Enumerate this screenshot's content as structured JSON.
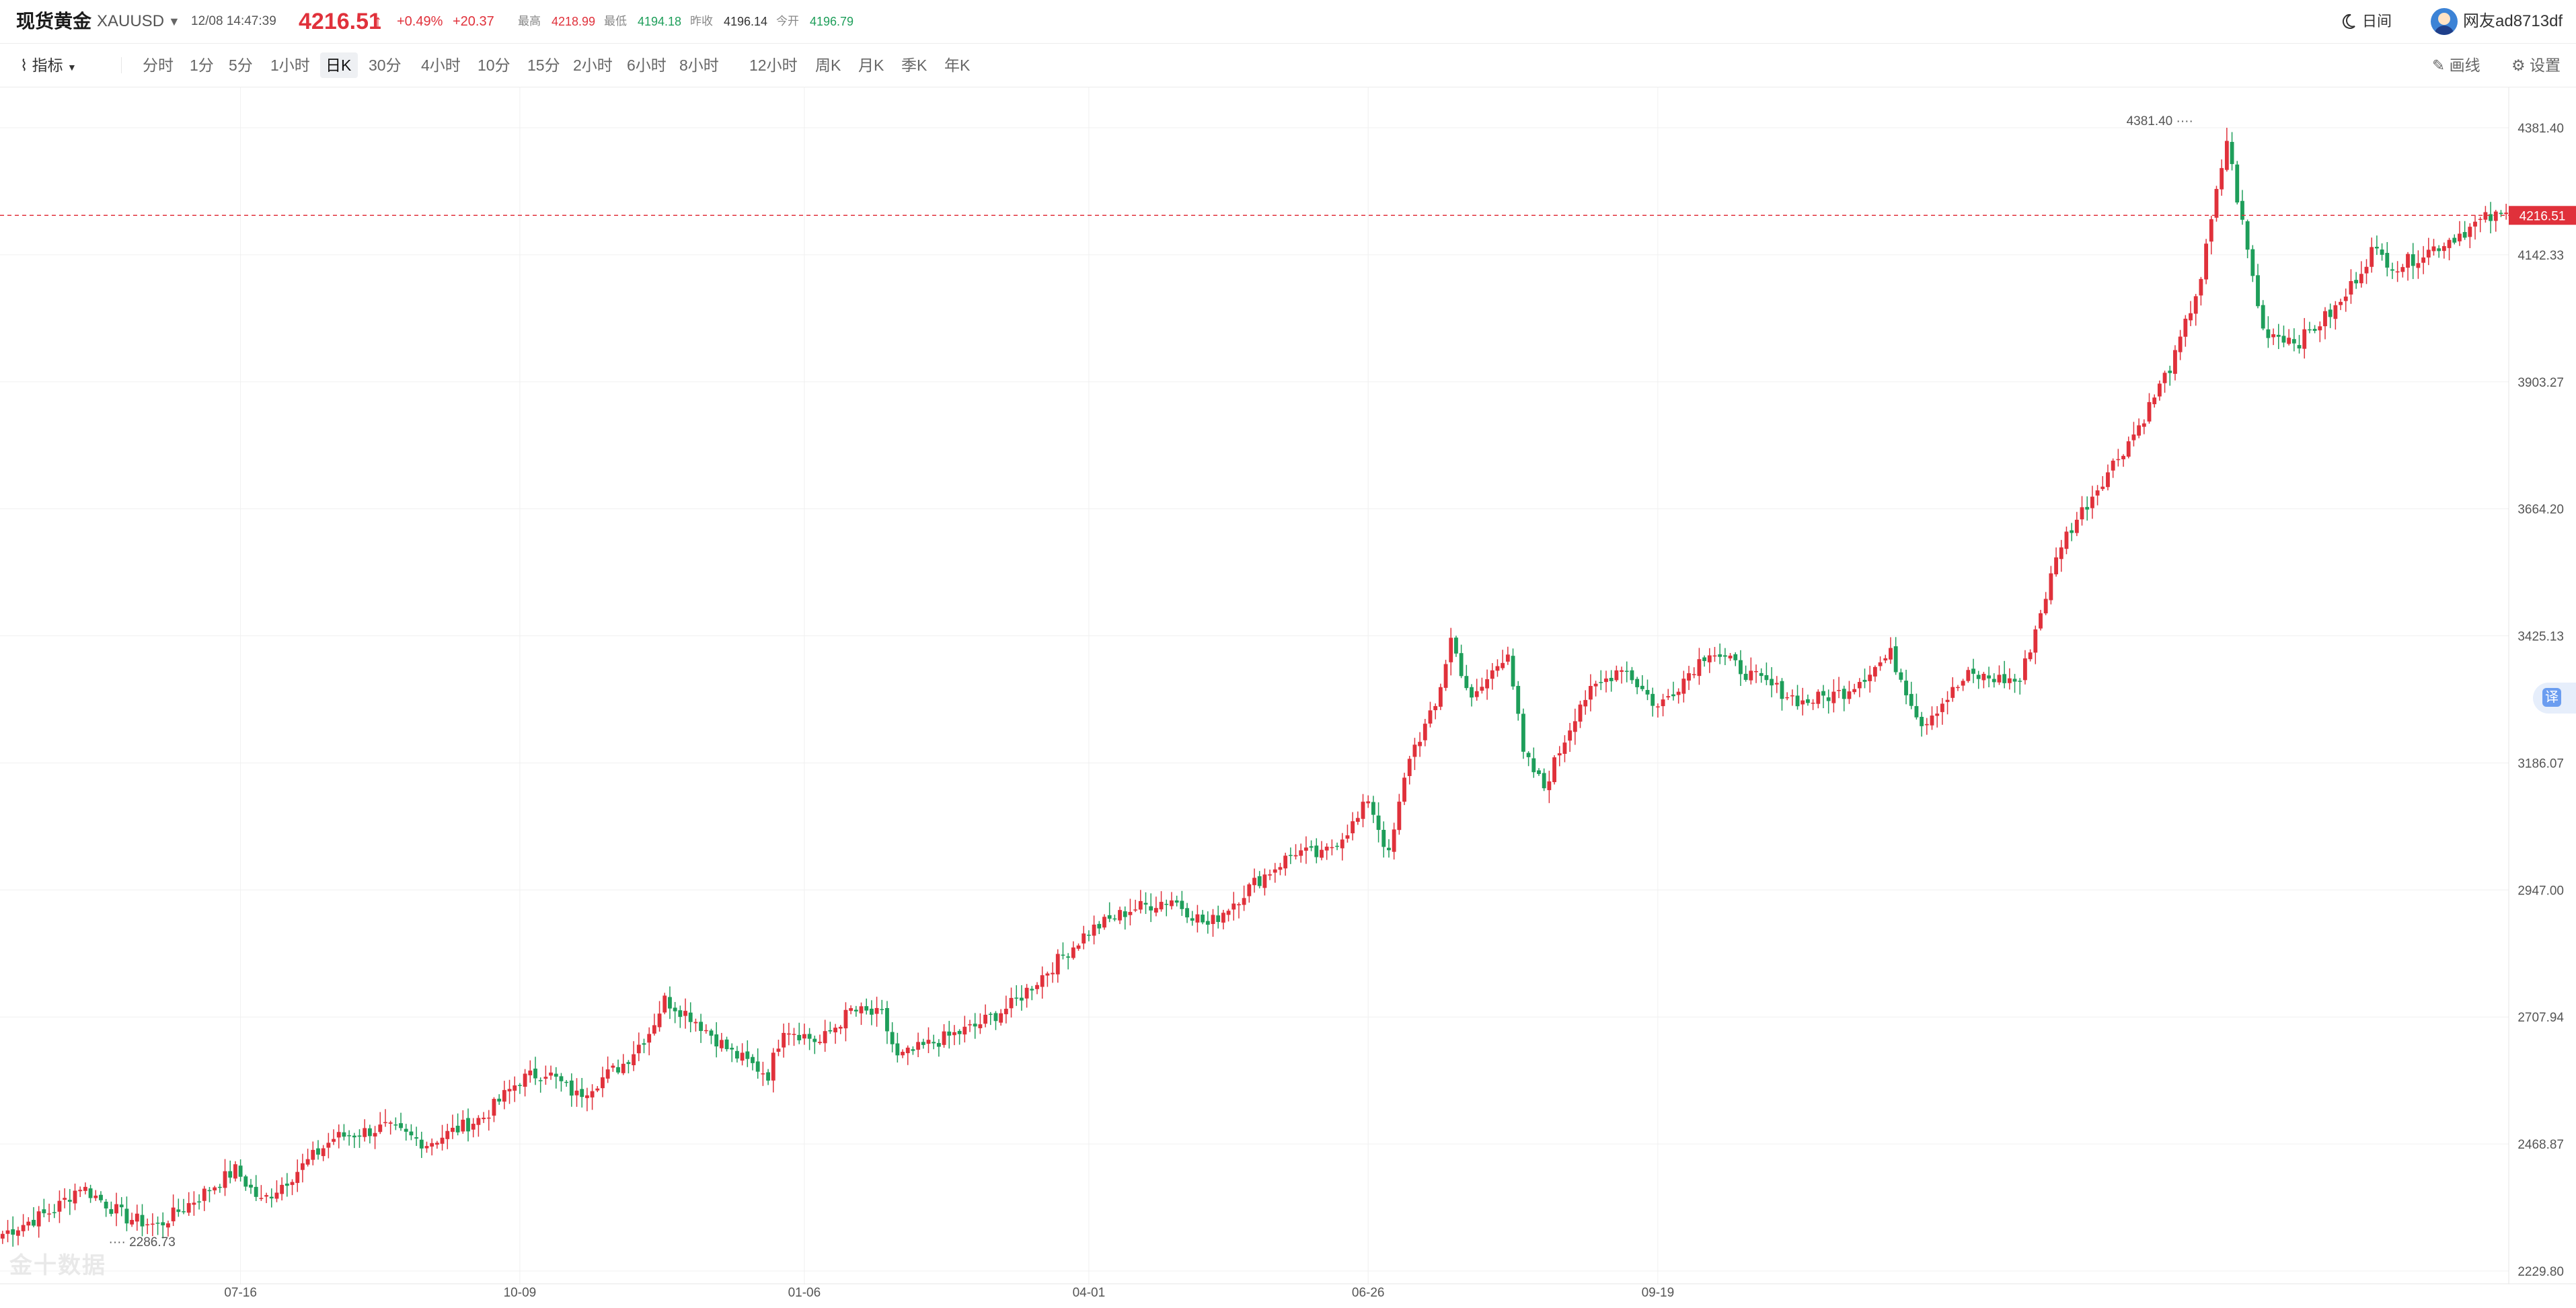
{
  "header": {
    "name": "现货黄金",
    "symbol": "XAUUSD",
    "datetime": "12/08 14:47:39",
    "price": "4216.51",
    "change_pct": "+0.49%",
    "change": "+20.37",
    "stats": [
      {
        "label": "最高",
        "value": "4218.99",
        "tone": "red"
      },
      {
        "label": "最低",
        "value": "4194.18",
        "tone": "green"
      },
      {
        "label": "昨收",
        "value": "4196.14",
        "tone": "dark"
      },
      {
        "label": "今开",
        "value": "4196.79",
        "tone": "green"
      }
    ],
    "day_night": "日间",
    "user": "网友ad8713df"
  },
  "toolbar": {
    "indicator": "指标",
    "periods": [
      "分时",
      "1分",
      "5分",
      "1小时",
      "日K",
      "30分",
      "4小时",
      "10分",
      "15分",
      "2小时",
      "6小时",
      "8小时",
      "12小时",
      "周K",
      "月K",
      "季K",
      "年K"
    ],
    "active_period": "日K",
    "draw": "画线",
    "settings": "设置"
  },
  "watermark": "金十数据",
  "translate_label": "译",
  "colors": {
    "up": "#e0313b",
    "down": "#1e9e5a",
    "grid": "#f0f0f0"
  },
  "chart_data": {
    "type": "candlestick",
    "y_ticks": [
      "4381.40",
      "4142.33",
      "3903.27",
      "3664.20",
      "3425.13",
      "3186.07",
      "2947.00",
      "2707.94",
      "2468.87",
      "2229.80"
    ],
    "x_ticks": [
      "07-16",
      "10-09",
      "01-06",
      "04-01",
      "06-26",
      "09-19"
    ],
    "ylim": [
      2229.8,
      4381.4
    ],
    "current_price": "4216.51",
    "max_label": "4381.40",
    "min_label": "2286.73",
    "grid": true,
    "close_anchors": [
      [
        0,
        2300
      ],
      [
        10,
        2345
      ],
      [
        15,
        2390
      ],
      [
        24,
        2330
      ],
      [
        30,
        2315
      ],
      [
        38,
        2370
      ],
      [
        45,
        2420
      ],
      [
        50,
        2360
      ],
      [
        56,
        2410
      ],
      [
        64,
        2480
      ],
      [
        74,
        2500
      ],
      [
        82,
        2470
      ],
      [
        93,
        2520
      ],
      [
        100,
        2590
      ],
      [
        105,
        2605
      ],
      [
        111,
        2560
      ],
      [
        120,
        2620
      ],
      [
        125,
        2680
      ],
      [
        128,
        2740
      ],
      [
        133,
        2710
      ],
      [
        141,
        2640
      ],
      [
        148,
        2600
      ],
      [
        151,
        2690
      ],
      [
        158,
        2660
      ],
      [
        164,
        2720
      ],
      [
        170,
        2710
      ],
      [
        173,
        2630
      ],
      [
        180,
        2660
      ],
      [
        188,
        2690
      ],
      [
        195,
        2730
      ],
      [
        202,
        2795
      ],
      [
        210,
        2870
      ],
      [
        218,
        2910
      ],
      [
        226,
        2930
      ],
      [
        233,
        2880
      ],
      [
        242,
        2960
      ],
      [
        250,
        3020
      ],
      [
        255,
        3010
      ],
      [
        262,
        3080
      ],
      [
        264,
        3120
      ],
      [
        268,
        3010
      ],
      [
        272,
        3200
      ],
      [
        277,
        3290
      ],
      [
        280,
        3420
      ],
      [
        284,
        3300
      ],
      [
        291,
        3400
      ],
      [
        294,
        3200
      ],
      [
        298,
        3140
      ],
      [
        305,
        3300
      ],
      [
        313,
        3370
      ],
      [
        320,
        3290
      ],
      [
        330,
        3400
      ],
      [
        338,
        3350
      ],
      [
        348,
        3300
      ],
      [
        356,
        3320
      ],
      [
        365,
        3390
      ],
      [
        371,
        3260
      ],
      [
        380,
        3350
      ],
      [
        390,
        3340
      ],
      [
        398,
        3600
      ],
      [
        406,
        3720
      ],
      [
        413,
        3820
      ],
      [
        420,
        3950
      ],
      [
        425,
        4100
      ],
      [
        430,
        4360
      ],
      [
        432,
        4250
      ],
      [
        437,
        4000
      ],
      [
        444,
        3980
      ],
      [
        452,
        4050
      ],
      [
        458,
        4150
      ],
      [
        463,
        4120
      ],
      [
        471,
        4160
      ],
      [
        480,
        4210
      ],
      [
        484,
        4216
      ]
    ],
    "total_bars": 485
  }
}
